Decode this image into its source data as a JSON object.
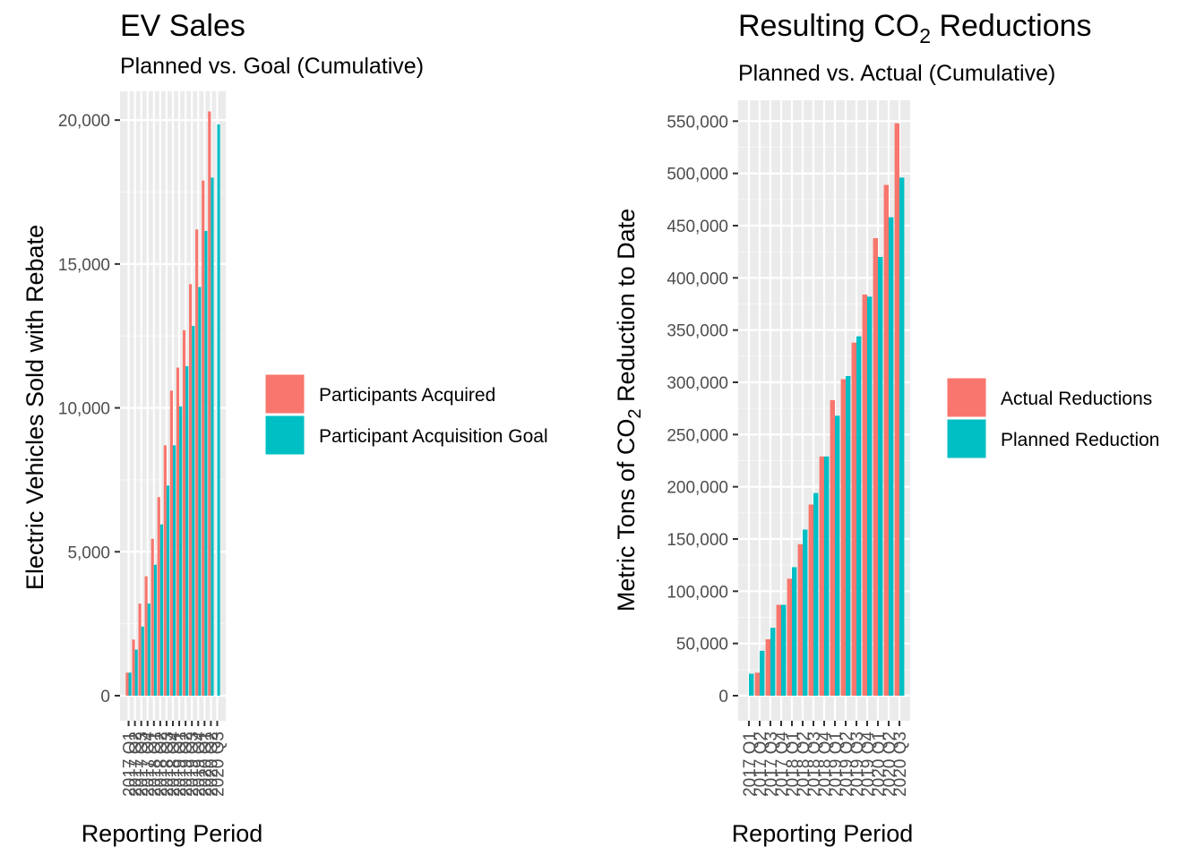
{
  "chart_data": [
    {
      "type": "bar",
      "title": "EV Sales",
      "subtitle": "Planned vs. Goal (Cumulative)",
      "xlabel": "Reporting Period",
      "ylabel": "Electric Vehicles Sold with Rebate",
      "ylim": [
        0,
        21000
      ],
      "yticks": [
        0,
        5000,
        10000,
        15000,
        20000
      ],
      "ytick_labels": [
        "0",
        "5,000",
        "10,000",
        "15,000",
        "20,000"
      ],
      "grid": true,
      "legend_position": "right",
      "categories": [
        "2017 Q1",
        "2017 Q2",
        "2017 Q3",
        "2017 Q4",
        "2018 Q1",
        "2018 Q2",
        "2018 Q3",
        "2018 Q4",
        "2019 Q1",
        "2019 Q2",
        "2019 Q3",
        "2019 Q4",
        "2020 Q1",
        "2020 Q2",
        "2020 Q3"
      ],
      "series": [
        {
          "name": "Participants Acquired",
          "color": "#F8766D",
          "values": [
            800,
            1950,
            3200,
            4150,
            5450,
            6900,
            8700,
            10600,
            11400,
            12700,
            14300,
            16200,
            17900,
            20300,
            null
          ]
        },
        {
          "name": "Participant Acquisition Goal",
          "color": "#00BFC4",
          "values": [
            800,
            1600,
            2400,
            3200,
            4550,
            5950,
            7300,
            8700,
            10050,
            11450,
            12850,
            14200,
            16150,
            18000,
            19850
          ]
        }
      ]
    },
    {
      "type": "bar",
      "title_parts": [
        "Resulting CO",
        "2",
        " Reductions"
      ],
      "subtitle": "Planned vs. Actual (Cumulative)",
      "xlabel": "Reporting Period",
      "ylabel_parts": [
        "Metric Tons of CO",
        "2",
        " Reduction to Date"
      ],
      "ylim": [
        0,
        570000
      ],
      "yticks": [
        0,
        50000,
        100000,
        150000,
        200000,
        250000,
        300000,
        350000,
        400000,
        450000,
        500000,
        550000
      ],
      "ytick_labels": [
        "0",
        "50,000",
        "100,000",
        "150,000",
        "200,000",
        "250,000",
        "300,000",
        "350,000",
        "400,000",
        "450,000",
        "500,000",
        "550,000"
      ],
      "grid": true,
      "legend_position": "right",
      "categories": [
        "2017 Q1",
        "2017 Q2",
        "2017 Q3",
        "2017 Q4",
        "2018 Q1",
        "2018 Q2",
        "2018 Q3",
        "2018 Q4",
        "2019 Q1",
        "2019 Q2",
        "2019 Q3",
        "2019 Q4",
        "2020 Q1",
        "2020 Q2",
        "2020 Q3"
      ],
      "series": [
        {
          "name": "Actual Reductions",
          "color": "#F8766D",
          "values": [
            0,
            22000,
            54000,
            87000,
            112000,
            145000,
            183000,
            229000,
            283000,
            303000,
            338000,
            384000,
            438000,
            489000,
            548000
          ]
        },
        {
          "name": "Planned Reduction",
          "color": "#00BFC4",
          "values": [
            21000,
            43000,
            65000,
            87000,
            123000,
            159000,
            194000,
            229000,
            268000,
            306000,
            344000,
            382000,
            420000,
            458000,
            496000
          ]
        }
      ]
    }
  ]
}
